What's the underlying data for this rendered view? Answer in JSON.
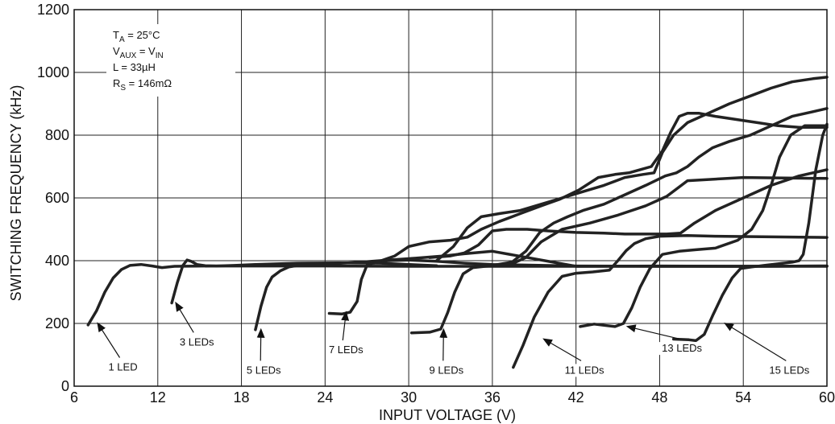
{
  "chart_data": {
    "type": "line",
    "title": "",
    "xlabel": "INPUT VOLTAGE (V)",
    "ylabel": "SWITCHING FREQUENCY (kHz)",
    "xlim": [
      6,
      60
    ],
    "ylim": [
      0,
      1200
    ],
    "xticks": [
      6,
      12,
      18,
      24,
      30,
      36,
      42,
      48,
      54,
      60
    ],
    "yticks": [
      0,
      200,
      400,
      600,
      800,
      1000,
      1200
    ],
    "grid": true,
    "line_color": "#222222",
    "conditions": {
      "ta": {
        "base": "T",
        "sub": "A",
        "rest": " = 25°C"
      },
      "vaux": {
        "base": "V",
        "sub": "AUX",
        "mid": " = V",
        "sub2": "IN"
      },
      "l": "L = 33µH",
      "rs": {
        "base": "R",
        "sub": "S",
        "rest": " = 146mΩ"
      }
    },
    "series": [
      {
        "label": "1 LED",
        "x": [
          7.0,
          7.6,
          8.2,
          8.8,
          9.4,
          10.0,
          10.8,
          11.6,
          12.3,
          13.2,
          16,
          20,
          24,
          30,
          36,
          42,
          48,
          54,
          60
        ],
        "y": [
          195,
          240,
          300,
          345,
          372,
          385,
          388,
          383,
          378,
          382,
          383,
          383,
          383,
          382,
          382,
          382,
          382,
          382,
          383
        ]
      },
      {
        "label": "3 LEDs",
        "x": [
          13.0,
          13.4,
          13.8,
          14.1,
          14.4,
          14.8,
          15.4,
          16.2,
          17.5,
          19,
          22,
          25,
          28,
          30,
          32
        ],
        "y": [
          265,
          330,
          385,
          402,
          398,
          388,
          384,
          383,
          385,
          388,
          392,
          393,
          392,
          388,
          384
        ]
      },
      {
        "label": "5 LEDs",
        "x": [
          19.0,
          19.4,
          19.8,
          20.2,
          20.8,
          21.4,
          22.2,
          23.2,
          24.5,
          26.5,
          28.5,
          30.5,
          32.5,
          34,
          36,
          42,
          48,
          54,
          60
        ],
        "y": [
          180,
          255,
          315,
          348,
          368,
          380,
          386,
          388,
          390,
          395,
          402,
          408,
          415,
          422,
          430,
          382,
          383,
          382,
          383
        ]
      },
      {
        "label": "7 LEDs",
        "x": [
          24.3,
          25.2,
          25.8,
          26.3,
          26.6,
          27.0,
          27.6,
          28.5,
          30,
          32,
          34,
          36,
          42,
          48,
          54,
          60
        ],
        "y": [
          232,
          230,
          236,
          270,
          340,
          385,
          395,
          400,
          402,
          398,
          392,
          388,
          383,
          382,
          382,
          382
        ]
      },
      {
        "label": "9 LEDs",
        "x": [
          30.2,
          31.5,
          32.3,
          32.8,
          33.3,
          33.9,
          34.6,
          35.5,
          36.6,
          37.4,
          38.4,
          39.5,
          41,
          43,
          45,
          47,
          48.5,
          50,
          54,
          60
        ],
        "y": [
          170,
          172,
          182,
          235,
          300,
          358,
          378,
          382,
          385,
          390,
          410,
          460,
          500,
          520,
          545,
          575,
          605,
          655,
          665,
          662
        ]
      },
      {
        "label": "11 LEDs",
        "x": [
          37.5,
          38.2,
          39.0,
          40.0,
          41.0,
          42.0,
          43.2,
          44.4,
          45.0,
          45.6,
          46.2,
          47.0,
          48,
          50,
          52,
          54,
          56,
          58,
          60
        ],
        "y": [
          60,
          130,
          220,
          300,
          350,
          360,
          364,
          370,
          400,
          432,
          455,
          470,
          478,
          480,
          478,
          477,
          476,
          475,
          474
        ]
      },
      {
        "label": "13 LEDs",
        "x": [
          42.3,
          43.3,
          44.0,
          44.8,
          45.4,
          46.0,
          46.6,
          47.3,
          48.2,
          49.4,
          50.6,
          52.0,
          53.6,
          54.6,
          55.4,
          56.0,
          56.6,
          57.4,
          58.4,
          60
        ],
        "y": [
          190,
          198,
          194,
          190,
          200,
          250,
          315,
          375,
          420,
          430,
          435,
          440,
          465,
          500,
          560,
          640,
          730,
          800,
          830,
          830
        ]
      },
      {
        "label": "15 LEDs",
        "x": [
          49.0,
          50.1,
          50.6,
          51.2,
          51.8,
          52.5,
          53.2,
          53.8,
          54.6,
          55.5,
          56.5,
          57.5,
          58.0,
          58.3,
          58.7,
          59.2,
          59.7,
          60
        ],
        "y": [
          150,
          148,
          145,
          165,
          225,
          290,
          345,
          375,
          380,
          385,
          390,
          395,
          400,
          420,
          520,
          690,
          800,
          835
        ]
      }
    ],
    "upper_curves": [
      {
        "x": [
          27.5,
          29.0,
          30.0,
          31.5,
          33.0,
          34.2,
          35.2,
          36.5,
          38,
          39.5,
          40.8,
          42.2,
          43.6,
          44.8,
          45.8,
          46.6,
          47.4,
          48.2,
          48.8,
          49.4,
          50.0,
          50.8,
          52,
          53.5,
          55,
          56.5,
          58,
          59.5,
          60
        ],
        "y": [
          392,
          415,
          445,
          460,
          465,
          475,
          500,
          525,
          550,
          575,
          595,
          625,
          665,
          675,
          680,
          690,
          700,
          750,
          810,
          860,
          870,
          870,
          860,
          850,
          840,
          830,
          825,
          825,
          825
        ]
      },
      {
        "x": [
          31.5,
          33.0,
          34.0,
          35.0,
          36.0,
          37.0,
          38.5,
          40.0,
          42.0,
          44.0,
          45.5,
          47.0,
          48.5,
          49.5,
          50.5,
          52,
          54,
          56,
          58,
          60
        ],
        "y": [
          410,
          415,
          425,
          450,
          495,
          500,
          500,
          495,
          490,
          488,
          485,
          485,
          485,
          488,
          520,
          560,
          600,
          640,
          670,
          690
        ]
      },
      {
        "x": [
          32.0,
          33.2,
          34.2,
          35.2,
          36.5,
          38,
          39.5,
          41,
          42.5,
          44,
          45.5,
          46.8,
          47.6,
          48.2,
          49.0,
          50.0,
          51.5,
          53,
          54.5,
          56,
          57.5,
          59,
          60
        ],
        "y": [
          400,
          445,
          505,
          540,
          550,
          560,
          580,
          600,
          620,
          640,
          665,
          675,
          680,
          745,
          800,
          840,
          870,
          900,
          925,
          950,
          970,
          980,
          985
        ]
      },
      {
        "x": [
          36.0,
          37.4,
          38.4,
          39.4,
          40.4,
          41.4,
          42.5,
          44,
          45.5,
          47,
          48.4,
          49.2,
          50.0,
          50.8,
          51.8,
          53,
          54.5,
          56,
          57.5,
          59,
          60
        ],
        "y": [
          385,
          395,
          430,
          490,
          520,
          540,
          560,
          580,
          610,
          640,
          670,
          680,
          700,
          730,
          760,
          780,
          800,
          830,
          860,
          875,
          885
        ]
      }
    ],
    "annotations": [
      {
        "text": "1 LED",
        "tx": 9.5,
        "ty": 50,
        "ax": 7.7,
        "ay": 200
      },
      {
        "text": "3 LEDs",
        "tx": 14.8,
        "ty": 130,
        "ax": 13.3,
        "ay": 265
      },
      {
        "text": "5 LEDs",
        "tx": 19.6,
        "ty": 40,
        "ax": 19.4,
        "ay": 180
      },
      {
        "text": "7 LEDs",
        "tx": 25.5,
        "ty": 105,
        "ax": 25.5,
        "ay": 235
      },
      {
        "text": "9 LEDs",
        "tx": 32.7,
        "ty": 40,
        "ax": 32.5,
        "ay": 180
      },
      {
        "text": "11 LEDs",
        "tx": 42.6,
        "ty": 40,
        "ax": 39.7,
        "ay": 150
      },
      {
        "text": "13 LEDs",
        "tx": 49.6,
        "ty": 110,
        "ax": 45.7,
        "ay": 190
      },
      {
        "text": "15 LEDs",
        "tx": 57.3,
        "ty": 40,
        "ax": 52.7,
        "ay": 200
      }
    ]
  }
}
